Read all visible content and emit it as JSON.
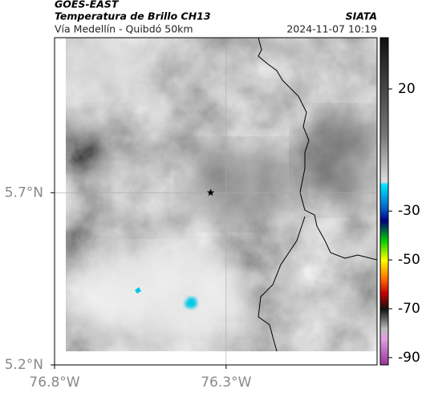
{
  "header": {
    "source": "GOES-EAST",
    "product": "Temperatura de Brillo CH13",
    "organization": "SIATA",
    "route": "Vía Medellín - Quibdó 50km",
    "datetime": "2024-11-07 10:19"
  },
  "map": {
    "xlim": [
      -76.8,
      -75.86
    ],
    "ylim": [
      5.2,
      6.15
    ],
    "xticks": [
      {
        "value": -76.8,
        "label": "76.8°W"
      },
      {
        "value": -76.3,
        "label": "76.3°W"
      }
    ],
    "yticks": [
      {
        "value": 5.2,
        "label": "5.2°N"
      },
      {
        "value": 5.7,
        "label": "5.7°N"
      }
    ],
    "grid": true,
    "marker": {
      "lon": -76.345,
      "lat": 5.7
    }
  },
  "colorbar": {
    "clim": [
      -93,
      41
    ],
    "ticks": [
      20,
      -30,
      -50,
      -70,
      -90
    ]
  }
}
